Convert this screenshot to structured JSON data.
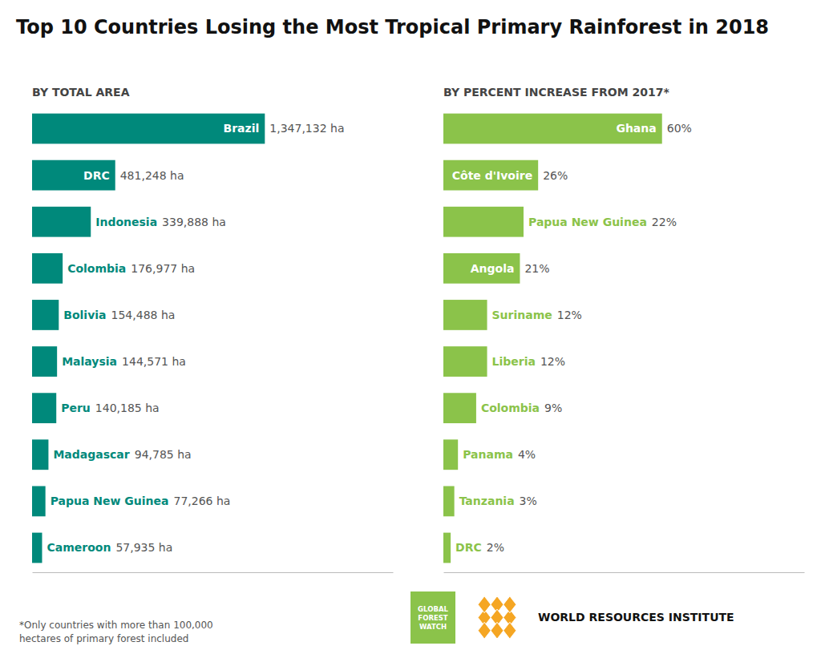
{
  "chart_data": [
    {
      "type": "bar",
      "orientation": "horizontal",
      "title": "Top 10 Countries Losing the Most Tropical Primary Rainforest in 2018",
      "subtitle": "BY TOTAL AREA",
      "categories": [
        "Brazil",
        "DRC",
        "Indonesia",
        "Colombia",
        "Bolivia",
        "Malaysia",
        "Peru",
        "Madagascar",
        "Papua New Guinea",
        "Cameroon"
      ],
      "values": [
        1347132,
        481248,
        339888,
        176977,
        154488,
        144571,
        140185,
        94785,
        77266,
        57935
      ],
      "value_labels": [
        "1,347,132 ha",
        "481,248 ha",
        "339,888 ha",
        "176,977 ha",
        "154,488 ha",
        "144,571 ha",
        "140,185 ha",
        "94,785 ha",
        "77,266 ha",
        "57,935 ha"
      ],
      "data_labels": true,
      "color": "#00897B",
      "xlim": [
        0,
        2088054.6
      ],
      "tick_labels": false,
      "grid": false
    },
    {
      "type": "bar",
      "orientation": "horizontal",
      "subtitle": "BY PERCENT INCREASE FROM 2017*",
      "categories": [
        "Ghana",
        "Côte d'Ivoire",
        "Papua New Guinea",
        "Angola",
        "Suriname",
        "Liberia",
        "Colombia",
        "Panama",
        "Tanzania",
        "DRC"
      ],
      "values": [
        60,
        26,
        22,
        21,
        12,
        12,
        9,
        4,
        3,
        2
      ],
      "value_labels": [
        "60%",
        "26%",
        "22%",
        "21%",
        "12%",
        "12%",
        "9%",
        "4%",
        "3%",
        "2%"
      ],
      "data_labels": true,
      "color": "#8BC34A",
      "xlim": [
        0,
        99
      ],
      "tick_labels": false,
      "grid": false,
      "annotations": [
        "*Only countries with more than 100,000\nhectares of primary forest included",
        "GLOBAL\nFOREST\nWATCH",
        "WORLD RESOURCES INSTITUTE"
      ]
    }
  ]
}
